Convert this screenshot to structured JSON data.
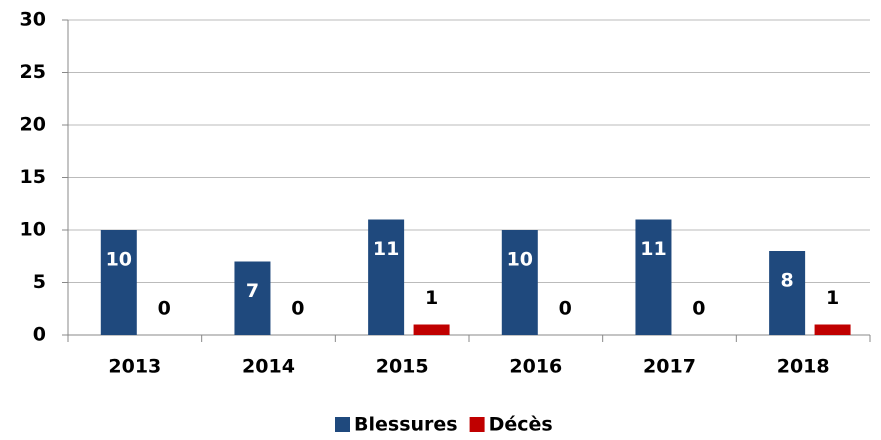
{
  "chart_data": {
    "type": "bar",
    "categories": [
      "2013",
      "2014",
      "2015",
      "2016",
      "2017",
      "2018"
    ],
    "series": [
      {
        "name": "Blessures",
        "color": "#1f497d",
        "values": [
          10,
          7,
          11,
          10,
          11,
          8
        ]
      },
      {
        "name": "Décès",
        "color": "#c00000",
        "values": [
          0,
          0,
          1,
          0,
          0,
          1
        ]
      }
    ],
    "ylim": [
      0,
      30
    ],
    "yticks": [
      0,
      5,
      10,
      15,
      20,
      25,
      30
    ],
    "grid": true,
    "legend": "bottom"
  }
}
